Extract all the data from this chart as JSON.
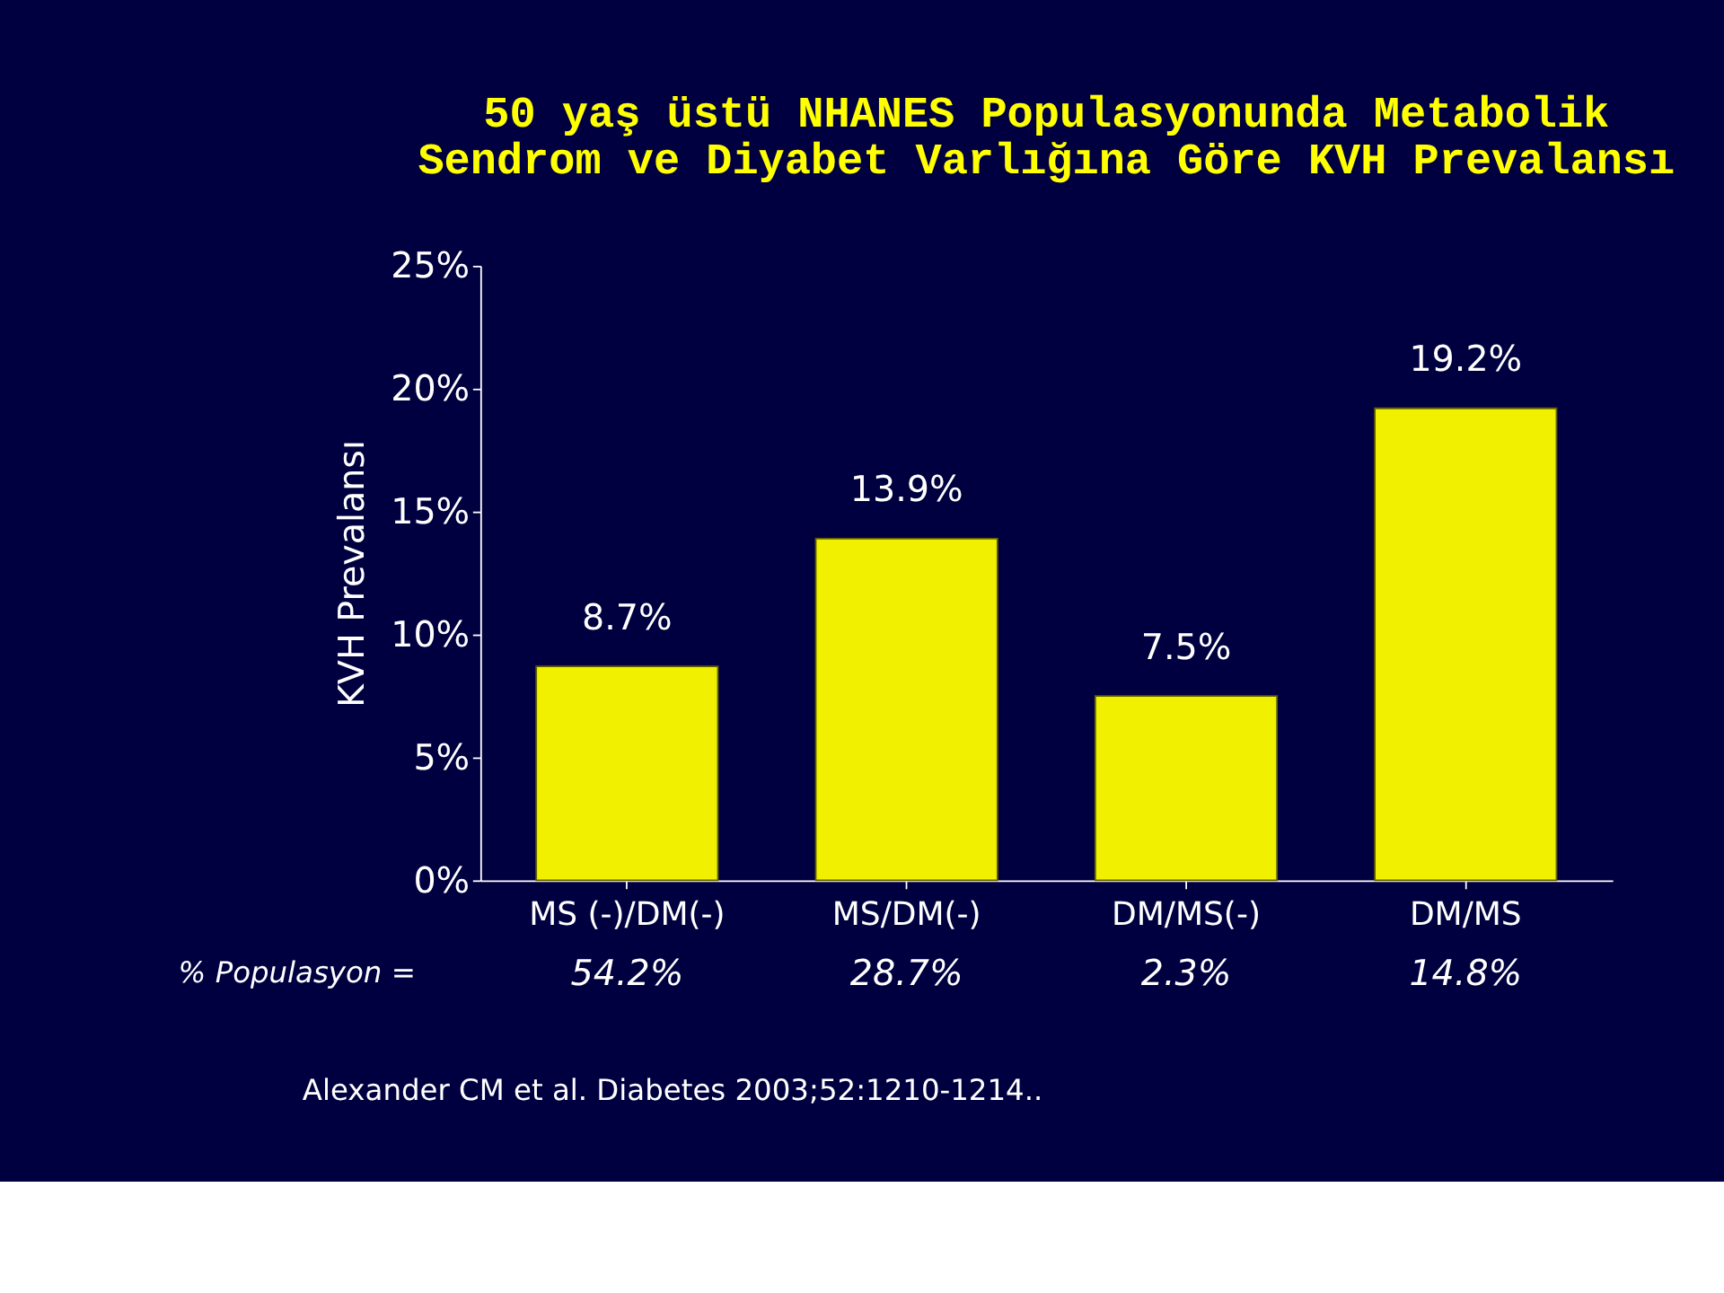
{
  "chart_data": {
    "type": "bar",
    "title": "50 yaş üstü NHANES Populasyonunda Metabolik\nSendrom ve Diyabet Varlığına Göre KVH Prevalansı",
    "ylabel": "KVH Prevalansı",
    "categories": [
      "MS (-)/DM(-)",
      "MS/DM(-)",
      "DM/MS(-)",
      "DM/MS"
    ],
    "values": [
      8.7,
      13.9,
      7.5,
      19.2
    ],
    "value_labels": [
      "8.7%",
      "13.9%",
      "7.5%",
      "19.2%"
    ],
    "color": "#f0f000",
    "ylim": [
      0,
      25
    ],
    "yticks": [
      {
        "value": 0,
        "label": "0%"
      },
      {
        "value": 5,
        "label": "5%"
      },
      {
        "value": 10,
        "label": "10%"
      },
      {
        "value": 15,
        "label": "15%"
      },
      {
        "value": 20,
        "label": "20%"
      },
      {
        "value": 25,
        "label": "25%"
      }
    ],
    "grid": false,
    "annotations": [
      "% Populasyon =",
      "54.2%",
      "28.7%",
      "2.3%",
      "14.8%",
      "Alexander CM et al. Diabetes 2003;52:1210-1214.."
    ]
  }
}
